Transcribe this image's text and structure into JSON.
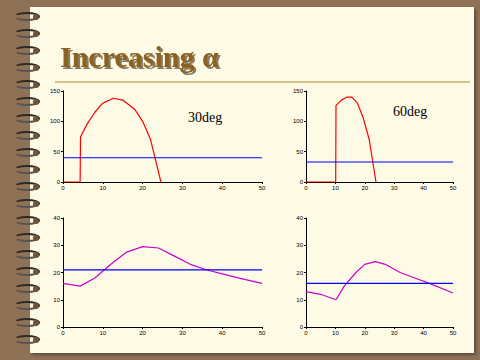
{
  "title": "Increasing α",
  "chart_data": [
    {
      "type": "line",
      "annotation": "30deg",
      "xlim": [
        0,
        50
      ],
      "xticks": [
        0,
        10,
        20,
        30,
        40,
        50
      ],
      "ylim": [
        0,
        150
      ],
      "yticks": [
        0,
        50,
        100,
        150
      ],
      "grid": false,
      "series": [
        {
          "color": "#ff0000",
          "x": [
            0,
            4.3,
            4.4,
            6,
            8,
            10,
            12.7,
            15,
            18,
            20,
            22,
            24.6
          ],
          "values": [
            0,
            0,
            74,
            95,
            115,
            130,
            138,
            135,
            120,
            100,
            70,
            0
          ]
        },
        {
          "color": "#0000ff",
          "x": [
            0,
            50
          ],
          "values": [
            40,
            40
          ]
        }
      ]
    },
    {
      "type": "line",
      "annotation": "60deg",
      "xlim": [
        0,
        50
      ],
      "xticks": [
        0,
        10,
        20,
        30,
        40,
        50
      ],
      "ylim": [
        0,
        150
      ],
      "yticks": [
        0,
        50,
        100,
        150
      ],
      "grid": false,
      "series": [
        {
          "color": "#ff0000",
          "x": [
            0,
            10.1,
            10.2,
            12,
            14,
            15.6,
            17.5,
            19.5,
            21.5,
            23.8
          ],
          "values": [
            0,
            0,
            126,
            135,
            140,
            140,
            130,
            105,
            70,
            0
          ]
        },
        {
          "color": "#0000ff",
          "x": [
            0,
            50
          ],
          "values": [
            33,
            33
          ]
        }
      ]
    },
    {
      "type": "line",
      "xlim": [
        0,
        50
      ],
      "xticks": [
        0,
        10,
        20,
        30,
        40,
        50
      ],
      "ylim": [
        0,
        40
      ],
      "yticks": [
        0,
        10,
        20,
        30,
        40
      ],
      "grid": false,
      "series": [
        {
          "color": "#cc00cc",
          "x": [
            0,
            4.3,
            8,
            12,
            16,
            20,
            24,
            28,
            32,
            36,
            40,
            44,
            50
          ],
          "values": [
            16,
            15,
            18,
            23,
            27.5,
            29.5,
            29,
            26,
            23,
            21,
            19.5,
            18,
            16
          ]
        },
        {
          "color": "#0000ff",
          "x": [
            0,
            50
          ],
          "values": [
            21,
            21
          ]
        }
      ]
    },
    {
      "type": "line",
      "xlim": [
        0,
        50
      ],
      "xticks": [
        0,
        10,
        20,
        30,
        40,
        50
      ],
      "ylim": [
        0,
        40
      ],
      "yticks": [
        0,
        10,
        20,
        30,
        40
      ],
      "grid": false,
      "series": [
        {
          "color": "#cc00cc",
          "x": [
            0,
            5,
            10.2,
            13,
            17,
            20,
            23.5,
            27,
            32,
            37,
            42,
            50
          ],
          "values": [
            13,
            12,
            10,
            15,
            20,
            23,
            24,
            23,
            20,
            18,
            16,
            12.5
          ]
        },
        {
          "color": "#0000ff",
          "x": [
            0,
            50
          ],
          "values": [
            16,
            16
          ]
        }
      ]
    }
  ]
}
